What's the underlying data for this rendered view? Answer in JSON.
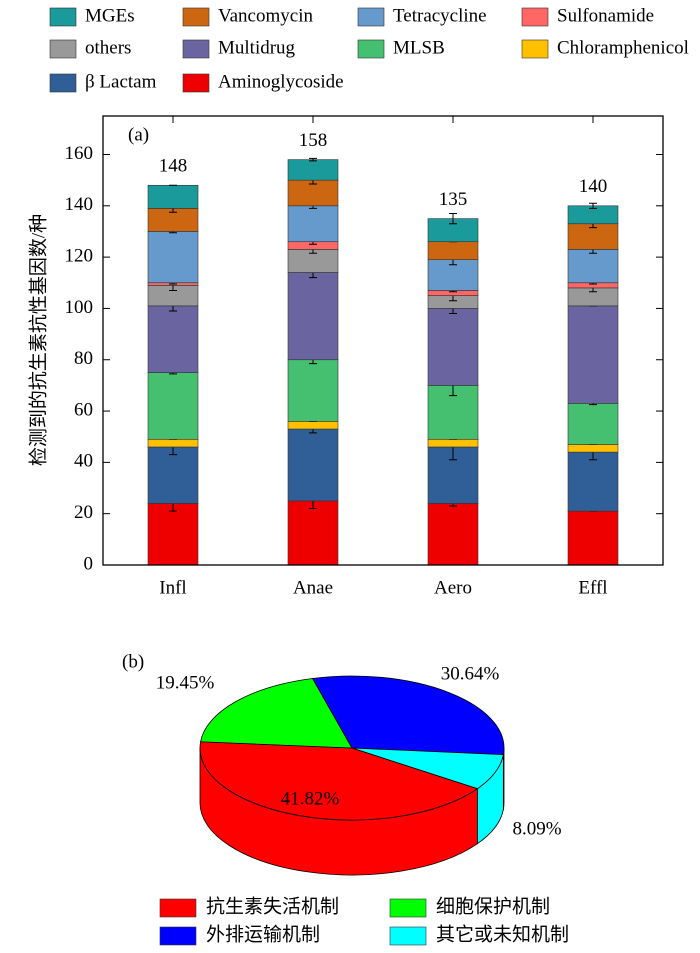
{
  "chart_data": [
    {
      "type": "stacked_bar",
      "panel": "(a)",
      "ylabel": "检测到的抗生素抗性基因数/种",
      "categories": [
        "Infl",
        "Anae",
        "Aero",
        "Effl"
      ],
      "series": [
        {
          "name": "Aminoglycoside",
          "color": "#ee0000",
          "values": [
            24,
            25,
            24,
            21
          ],
          "errors": [
            3,
            3,
            1,
            0
          ]
        },
        {
          "name": "β Lactam",
          "color": "#2f5f96",
          "values": [
            22,
            28,
            22,
            23
          ],
          "errors": [
            3,
            1.5,
            5,
            3
          ]
        },
        {
          "name": "Chloramphenicol",
          "color": "#ffc000",
          "values": [
            3,
            3,
            3,
            3
          ],
          "errors": [
            0,
            0,
            0,
            0
          ]
        },
        {
          "name": "MLSB",
          "color": "#44c070",
          "values": [
            26,
            24,
            21,
            16
          ],
          "errors": [
            0.5,
            1.5,
            4,
            0.5
          ]
        },
        {
          "name": "Multidrug",
          "color": "#6a64a0",
          "values": [
            26,
            34,
            30,
            38
          ],
          "errors": [
            2,
            2,
            2,
            0
          ]
        },
        {
          "name": "others",
          "color": "#999999",
          "values": [
            8,
            9,
            5,
            7
          ],
          "errors": [
            2,
            1.5,
            2,
            1.5
          ]
        },
        {
          "name": "Sulfonamide",
          "color": "#ff6666",
          "values": [
            1,
            3,
            2,
            2
          ],
          "errors": [
            0.5,
            1,
            0.5,
            0.5
          ]
        },
        {
          "name": "Tetracycline",
          "color": "#6699cc",
          "values": [
            20,
            14,
            12,
            13
          ],
          "errors": [
            0.5,
            1,
            2,
            1.5
          ]
        },
        {
          "name": "Vancomycin",
          "color": "#cc6611",
          "values": [
            9,
            10,
            7,
            10
          ],
          "errors": [
            1.5,
            1.5,
            0,
            1.5
          ]
        },
        {
          "name": "MGEs",
          "color": "#1a9a9a",
          "values": [
            9,
            8,
            9,
            7
          ],
          "errors": [
            0,
            0.5,
            2,
            1
          ]
        }
      ],
      "totals": [
        148,
        158,
        135,
        140
      ],
      "ylim": [
        0,
        175
      ],
      "yticks": [
        0,
        20,
        40,
        60,
        80,
        100,
        120,
        140,
        160
      ]
    },
    {
      "type": "pie3d",
      "panel": "(b)",
      "categories": [
        "抗生素失活机制",
        "细胞保护机制",
        "外排运输机制",
        "其它或未知机制"
      ],
      "values": [
        41.82,
        19.45,
        30.64,
        8.09
      ],
      "value_labels": [
        "41.82%",
        "19.45%",
        "30.64%",
        "8.09%"
      ],
      "colors": [
        "#ff0000",
        "#00ff00",
        "#0000ff",
        "#00ffff"
      ]
    }
  ]
}
